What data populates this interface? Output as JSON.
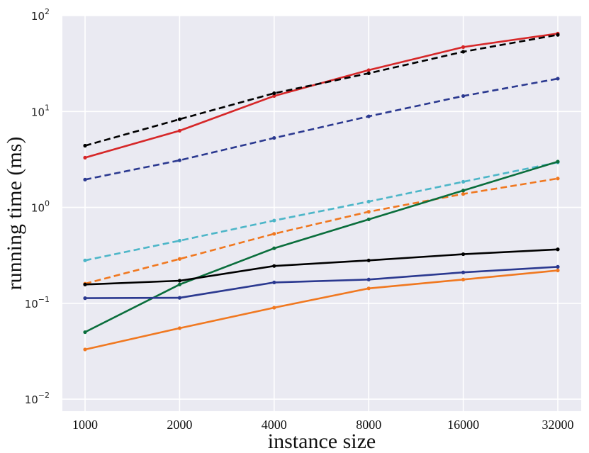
{
  "chart_data": {
    "type": "line",
    "title": "",
    "xlabel": "instance size",
    "ylabel": "running time (ms)",
    "x": [
      1000,
      2000,
      4000,
      8000,
      16000,
      32000
    ],
    "x_tick_labels": [
      "1000",
      "2000",
      "4000",
      "8000",
      "16000",
      "32000"
    ],
    "x_scale": "log",
    "y_scale": "log",
    "ylim": [
      0.0075,
      100
    ],
    "y_ticks": [
      {
        "value": 0.01,
        "base": "10",
        "exp": "−2"
      },
      {
        "value": 0.1,
        "base": "10",
        "exp": "−1"
      },
      {
        "value": 1,
        "base": "10",
        "exp": "0"
      },
      {
        "value": 10,
        "base": "10",
        "exp": "1"
      },
      {
        "value": 100,
        "base": "10",
        "exp": "2"
      }
    ],
    "grid": true,
    "background_color": "#eaeaf2",
    "grid_color": "#ffffff",
    "series": [
      {
        "color": "#d62728",
        "dash": false,
        "values": [
          3.3,
          6.3,
          14.5,
          27,
          47,
          65
        ]
      },
      {
        "color": "#000000",
        "dash": true,
        "values": [
          4.4,
          8.3,
          15.5,
          25,
          42,
          63
        ]
      },
      {
        "color": "#2b3990",
        "dash": true,
        "values": [
          1.95,
          3.1,
          5.3,
          8.9,
          14.5,
          22
        ]
      },
      {
        "color": "#4db6c8",
        "dash": true,
        "values": [
          0.28,
          0.45,
          0.73,
          1.15,
          1.85,
          2.95
        ]
      },
      {
        "color": "#f07820",
        "dash": true,
        "values": [
          0.16,
          0.29,
          0.53,
          0.9,
          1.38,
          2.0
        ]
      },
      {
        "color": "#0a6e3c",
        "dash": false,
        "values": [
          0.05,
          0.157,
          0.375,
          0.75,
          1.5,
          3.0
        ]
      },
      {
        "color": "#000000",
        "dash": false,
        "values": [
          0.157,
          0.172,
          0.245,
          0.28,
          0.325,
          0.365
        ]
      },
      {
        "color": "#2b3990",
        "dash": false,
        "values": [
          0.113,
          0.114,
          0.165,
          0.177,
          0.21,
          0.24
        ]
      },
      {
        "color": "#f07820",
        "dash": false,
        "values": [
          0.033,
          0.055,
          0.09,
          0.143,
          0.177,
          0.22
        ]
      }
    ]
  }
}
